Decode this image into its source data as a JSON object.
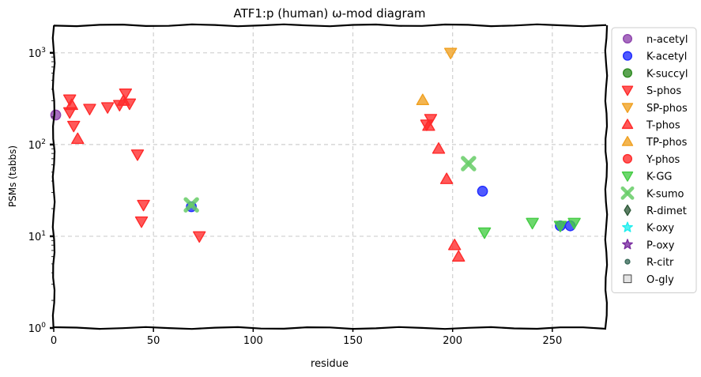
{
  "chart_data": {
    "type": "scatter",
    "title": "ATF1:p (human) ω-mod diagram",
    "xlabel": "residue",
    "ylabel": "PSMs (tabbs)",
    "xlim": [
      0,
      277
    ],
    "ylim_log10": [
      0,
      3.3
    ],
    "yscale": "log",
    "xticks": [
      0,
      50,
      100,
      150,
      200,
      250
    ],
    "yticks": [
      {
        "value": 1,
        "label_base": "10",
        "label_exp": "0"
      },
      {
        "value": 10,
        "label_base": "10",
        "label_exp": "1"
      },
      {
        "value": 100,
        "label_base": "10",
        "label_exp": "2"
      },
      {
        "value": 1000,
        "label_base": "10",
        "label_exp": "3"
      }
    ],
    "grid": true,
    "legend_position": "right-outside",
    "series": [
      {
        "name": "n-acetyl",
        "marker": "circle",
        "color": "#8e44ad",
        "points": [
          [
            1,
            210
          ]
        ]
      },
      {
        "name": "K-acetyl",
        "marker": "circle",
        "color": "#1f2bff",
        "points": [
          [
            69,
            21
          ],
          [
            215,
            31
          ],
          [
            254,
            13
          ],
          [
            259,
            13
          ]
        ]
      },
      {
        "name": "K-succyl",
        "marker": "circle",
        "color": "#2e8b22",
        "points": []
      },
      {
        "name": "S-phos",
        "marker": "triangle-down",
        "color": "#ff2a2a",
        "points": [
          [
            8,
            310
          ],
          [
            8,
            225
          ],
          [
            10,
            160
          ],
          [
            18,
            245
          ],
          [
            27,
            255
          ],
          [
            33,
            270
          ],
          [
            36,
            360
          ],
          [
            38,
            280
          ],
          [
            42,
            78
          ],
          [
            45,
            22
          ],
          [
            44,
            14.5
          ],
          [
            73,
            10
          ],
          [
            187,
            165
          ],
          [
            189,
            190
          ]
        ]
      },
      {
        "name": "SP-phos",
        "marker": "triangle-down",
        "color": "#f0a020",
        "points": [
          [
            199,
            1000
          ]
        ]
      },
      {
        "name": "T-phos",
        "marker": "triangle-up",
        "color": "#ff2a2a",
        "points": [
          [
            9,
            270
          ],
          [
            12,
            115
          ],
          [
            35,
            300
          ],
          [
            188,
            160
          ],
          [
            193,
            90
          ],
          [
            197,
            42
          ],
          [
            201,
            8
          ],
          [
            203,
            6
          ]
        ]
      },
      {
        "name": "TP-phos",
        "marker": "triangle-up",
        "color": "#f0a020",
        "points": [
          [
            185,
            305
          ]
        ]
      },
      {
        "name": "Y-phos",
        "marker": "circle",
        "color": "#ff2a2a",
        "points": []
      },
      {
        "name": "K-GG",
        "marker": "triangle-down",
        "color": "#44cc44",
        "points": [
          [
            216,
            11
          ],
          [
            240,
            14
          ],
          [
            254,
            13
          ],
          [
            261,
            14
          ]
        ]
      },
      {
        "name": "K-sumo",
        "marker": "x",
        "color": "#66cc66",
        "points": [
          [
            69,
            22
          ],
          [
            208,
            62
          ]
        ]
      },
      {
        "name": "R-dimet",
        "marker": "diamond",
        "color": "#2f5b3a",
        "points": []
      },
      {
        "name": "K-oxy",
        "marker": "star",
        "color": "#22eeee",
        "points": []
      },
      {
        "name": "P-oxy",
        "marker": "star",
        "color": "#7a2da0",
        "points": []
      },
      {
        "name": "R-citr",
        "marker": "dot",
        "color": "#3a6a5a",
        "points": []
      },
      {
        "name": "O-gly",
        "marker": "square",
        "color": "#dddddd",
        "points": []
      }
    ]
  }
}
